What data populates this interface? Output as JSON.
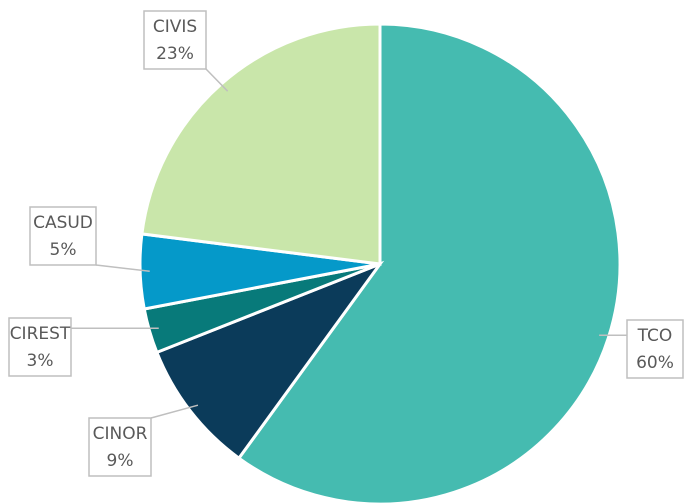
{
  "chart_data": {
    "type": "pie",
    "categories": [
      "TCO",
      "CINOR",
      "CIREST",
      "CASUD",
      "CIVIS"
    ],
    "values": [
      60,
      9,
      3,
      5,
      23
    ],
    "value_labels": [
      "60%",
      "9%",
      "3%",
      "5%",
      "23%"
    ],
    "colors": [
      "#45bbb0",
      "#0b3b5a",
      "#087a7a",
      "#0599c9",
      "#c9e6aa"
    ]
  }
}
